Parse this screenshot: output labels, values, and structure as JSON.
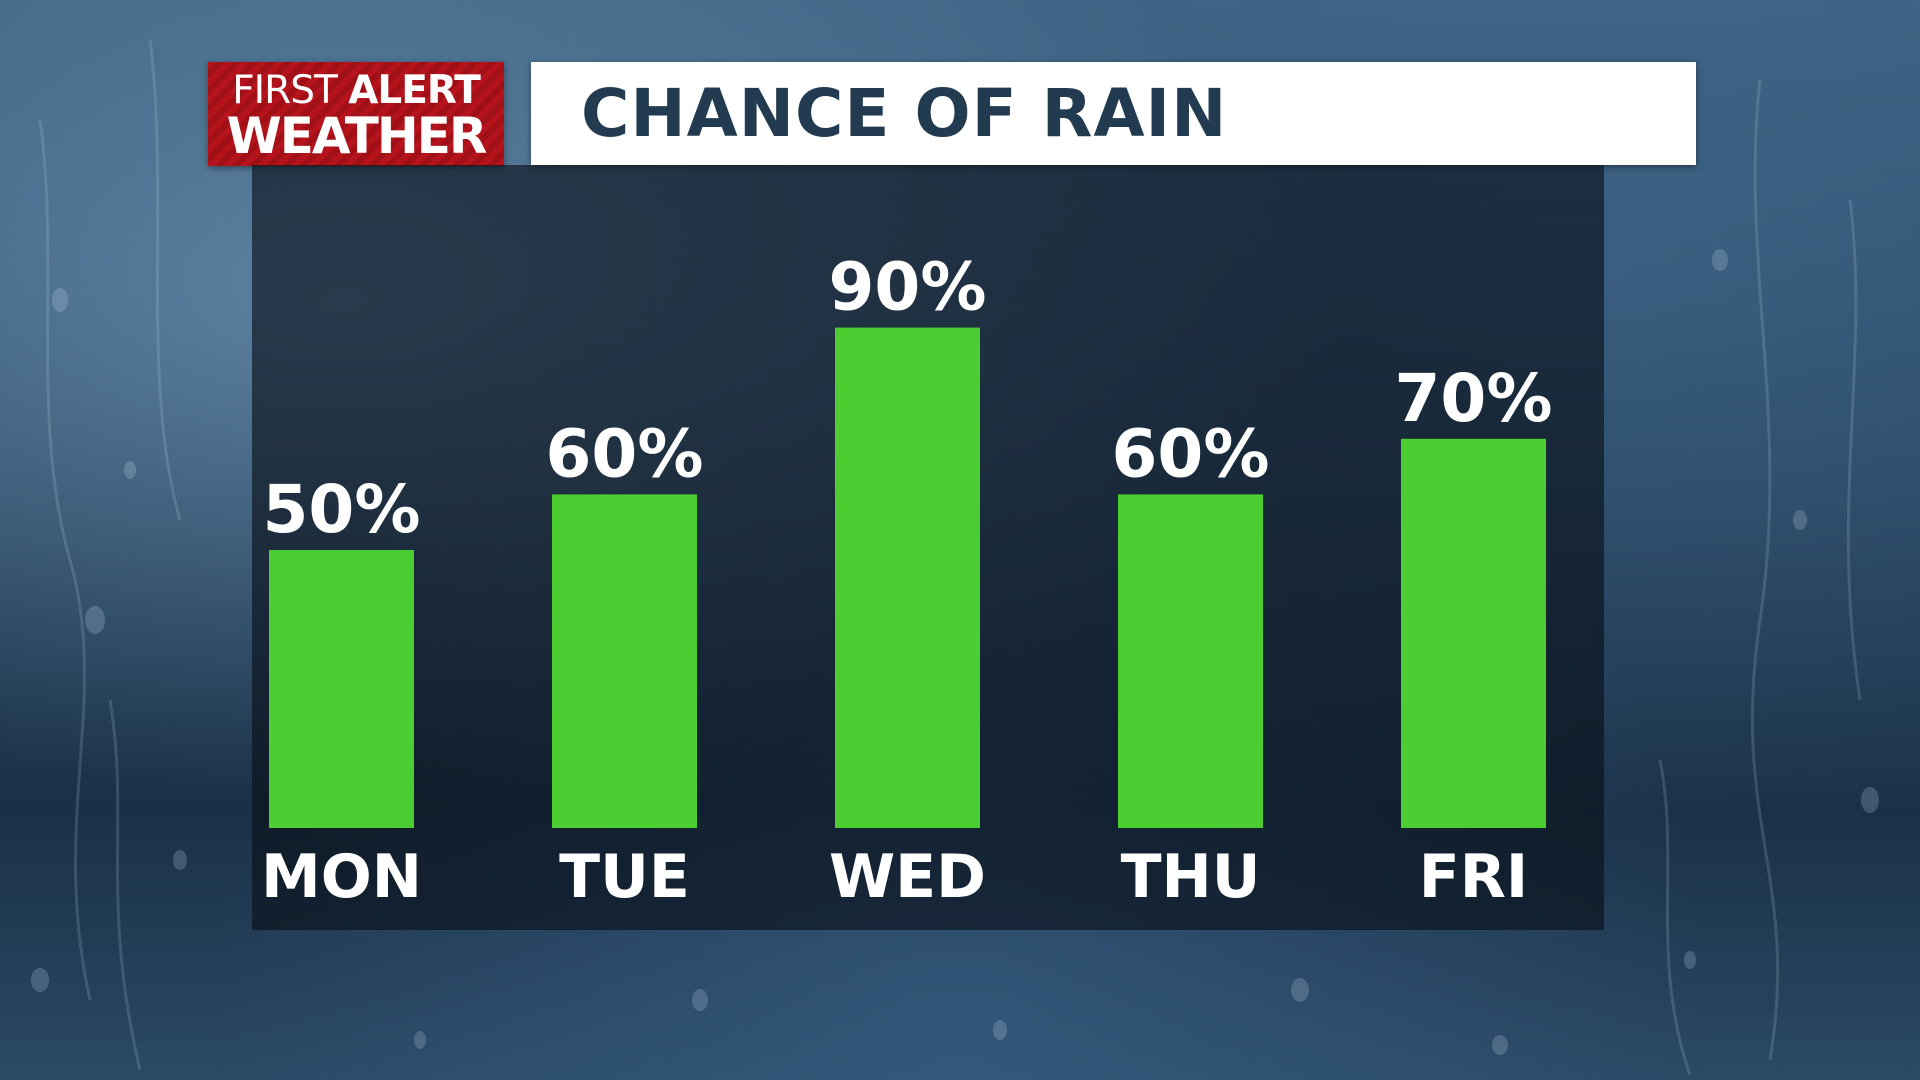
{
  "brand": {
    "line1_regular": "FIRST",
    "line1_bold": "ALERT",
    "line2": "WEATHER"
  },
  "colors": {
    "bar": "#4cce32",
    "brand_red": "#b5141c",
    "title_text": "#223b50",
    "label_text": "#ffffff"
  },
  "chart_data": {
    "type": "bar",
    "title": "CHANCE OF RAIN",
    "categories": [
      "MON",
      "TUE",
      "WED",
      "THU",
      "FRI"
    ],
    "values": [
      50,
      60,
      90,
      60,
      70
    ],
    "value_labels": [
      "50%",
      "60%",
      "90%",
      "60%",
      "70%"
    ],
    "unit": "%",
    "ylim": [
      0,
      100
    ],
    "grid": false,
    "legend": "none"
  }
}
